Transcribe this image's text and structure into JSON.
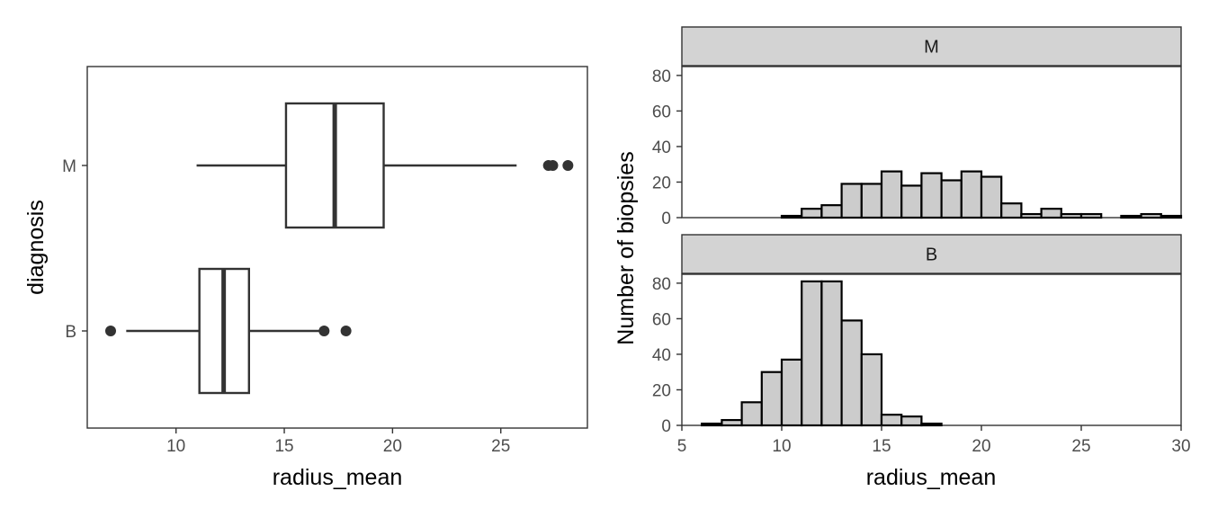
{
  "chart_data": [
    {
      "type": "box",
      "orientation": "horizontal",
      "xlabel": "radius_mean",
      "ylabel": "diagnosis",
      "xlim": [
        5.9,
        29.0
      ],
      "x_ticks": [
        10,
        15,
        20,
        25
      ],
      "categories": [
        "M",
        "B"
      ],
      "boxes": [
        {
          "category": "M",
          "whisker_low": 10.95,
          "q1": 15.08,
          "median": 17.33,
          "q3": 19.59,
          "whisker_high": 25.73,
          "outliers": [
            27.2,
            27.4,
            28.1
          ]
        },
        {
          "category": "B",
          "whisker_low": 7.7,
          "q1": 11.08,
          "median": 12.2,
          "q3": 13.37,
          "whisker_high": 16.6,
          "outliers": [
            6.98,
            16.84,
            17.85
          ]
        }
      ],
      "colors": {
        "line": "#333333",
        "fill": "#ffffff"
      }
    },
    {
      "type": "bar",
      "subtype": "histogram",
      "xlabel": "radius_mean",
      "ylabel": "Number of biopsies",
      "xlim": [
        5,
        30
      ],
      "x_ticks": [
        5,
        10,
        15,
        20,
        25,
        30
      ],
      "ylim": [
        0,
        85
      ],
      "y_ticks": [
        0,
        20,
        40,
        60,
        80
      ],
      "bin_width": 1,
      "bin_edges_start": 6,
      "facets": [
        {
          "label": "M",
          "counts": [
            0,
            0,
            0,
            0,
            1,
            5,
            7,
            19,
            19,
            26,
            18,
            25,
            21,
            26,
            23,
            8,
            2,
            5,
            2,
            2,
            0,
            1,
            2,
            1
          ]
        },
        {
          "label": "B",
          "counts": [
            1,
            3,
            13,
            30,
            37,
            81,
            81,
            59,
            40,
            6,
            5,
            1,
            0,
            0,
            0,
            0,
            0,
            0,
            0,
            0,
            0,
            0,
            0,
            0
          ]
        }
      ],
      "colors": {
        "bar_fill": "#cccccc",
        "bar_stroke": "#000000",
        "strip_fill": "#d3d3d3"
      }
    }
  ]
}
